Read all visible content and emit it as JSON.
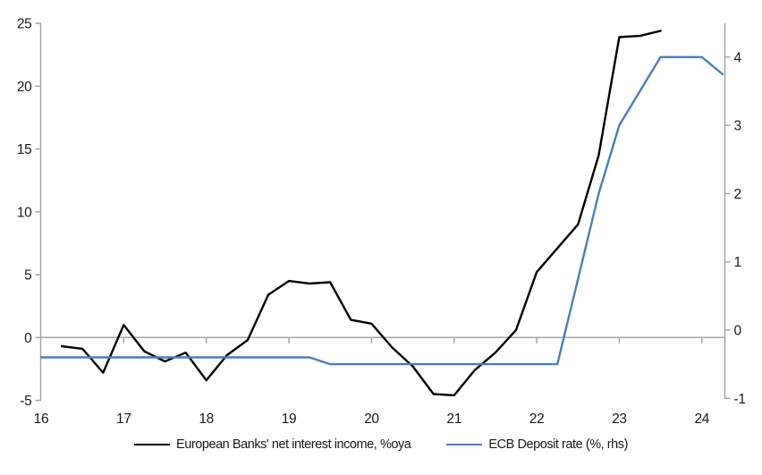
{
  "chart_data": {
    "type": "line",
    "title": "",
    "background": "#ffffff",
    "x_axis": {
      "ticks": [
        16,
        17,
        18,
        19,
        20,
        21,
        22,
        23,
        24
      ],
      "range": [
        16,
        24.3
      ],
      "tick_labels_position": "bottom",
      "axis_line_at": 0
    },
    "left_axis": {
      "ticks": [
        25,
        20,
        15,
        10,
        5,
        0,
        -5
      ],
      "range": [
        -5,
        25
      ]
    },
    "right_axis": {
      "ticks": [
        4,
        3,
        2,
        1,
        0,
        -1
      ],
      "range": [
        -1,
        4.5
      ]
    },
    "grid": "zero-line-only",
    "legend_position": "bottom-center",
    "series": [
      {
        "name": "European Banks' net interest income, %oya",
        "color": "#000000",
        "axis": "left",
        "x": [
          16.25,
          16.5,
          16.75,
          17.0,
          17.25,
          17.5,
          17.75,
          18.0,
          18.25,
          18.5,
          18.75,
          19.0,
          19.25,
          19.5,
          19.75,
          20.0,
          20.25,
          20.5,
          20.75,
          21.0,
          21.25,
          21.5,
          21.75,
          22.0,
          22.25,
          22.5,
          22.75,
          23.0,
          23.25,
          23.5
        ],
        "y": [
          -0.7,
          -0.9,
          -2.8,
          1.0,
          -1.1,
          -1.9,
          -1.2,
          -3.4,
          -1.4,
          -0.2,
          3.4,
          4.5,
          4.3,
          4.4,
          1.4,
          1.1,
          -0.8,
          -2.3,
          -4.5,
          -4.6,
          -2.6,
          -1.2,
          0.6,
          5.2,
          7.1,
          9.0,
          14.5,
          23.9,
          24.0,
          24.4
        ]
      },
      {
        "name": "ECB Deposit rate (%, rhs)",
        "color": "#4a7ebc",
        "axis": "right",
        "x": [
          16.0,
          19.25,
          19.5,
          22.25,
          22.5,
          22.75,
          23.0,
          23.25,
          23.5,
          24.0,
          24.25
        ],
        "y": [
          -0.4,
          -0.4,
          -0.5,
          -0.5,
          0.75,
          2.0,
          3.0,
          3.5,
          4.0,
          4.0,
          3.75
        ]
      }
    ]
  },
  "colors": {
    "axis": "#a6a6a6",
    "zero_line": "#a6a6a6",
    "label_text": "#1a1a1a",
    "background": "#ffffff"
  }
}
